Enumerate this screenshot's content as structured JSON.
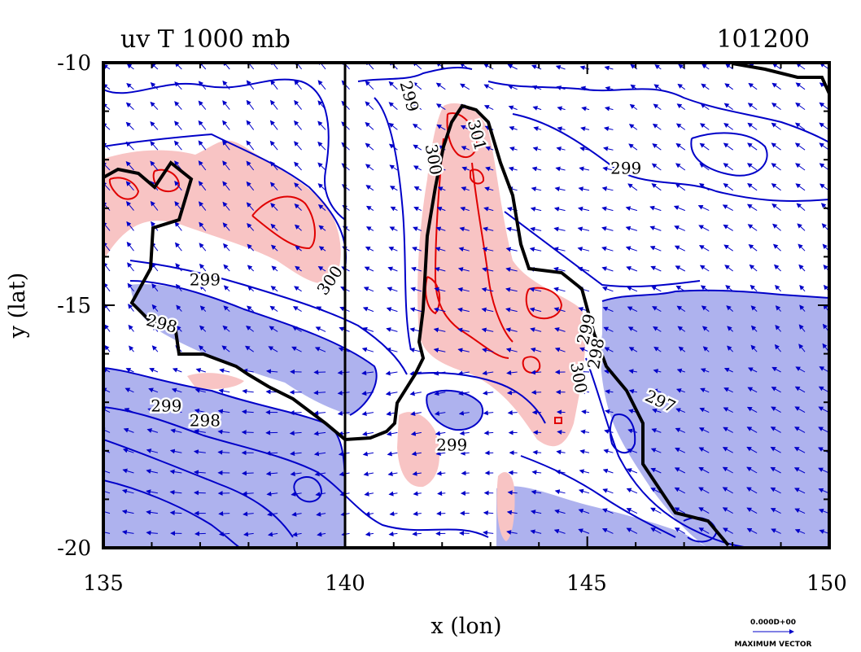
{
  "chart_data": {
    "type": "contour",
    "title": "uv T 1000 mb",
    "title_right": "101200",
    "xlabel": "x (lon)",
    "ylabel": "y (lat)",
    "xlim": [
      135,
      150
    ],
    "ylim": [
      -20,
      -10
    ],
    "xticks": [
      135,
      140,
      145,
      150
    ],
    "yticks": [
      -10,
      -15,
      -20
    ],
    "grid": false,
    "warm_fill_color": "#f8c4c4",
    "cool_fill_color": "#aeb2ee",
    "warm_line_color": "#e00000",
    "cool_line_color": "#0000c8",
    "coast_color": "#000000",
    "contour_labels": [
      {
        "text": "299",
        "x": 141.3,
        "y": -10.7,
        "rotate": 75
      },
      {
        "text": "301",
        "x": 142.7,
        "y": -11.5,
        "rotate": 75
      },
      {
        "text": "300",
        "x": 141.8,
        "y": -12.0,
        "rotate": 80
      },
      {
        "text": "299",
        "x": 145.8,
        "y": -12.2,
        "rotate": 0
      },
      {
        "text": "299",
        "x": 137.1,
        "y": -14.5,
        "rotate": 0
      },
      {
        "text": "300",
        "x": 139.7,
        "y": -14.5,
        "rotate": -55
      },
      {
        "text": "298",
        "x": 136.2,
        "y": -15.4,
        "rotate": 15
      },
      {
        "text": "299",
        "x": 145.0,
        "y": -15.5,
        "rotate": -75
      },
      {
        "text": "298",
        "x": 145.2,
        "y": -16.0,
        "rotate": -80
      },
      {
        "text": "300",
        "x": 144.8,
        "y": -16.5,
        "rotate": 80
      },
      {
        "text": "299",
        "x": 136.3,
        "y": -17.1,
        "rotate": 0
      },
      {
        "text": "297",
        "x": 146.5,
        "y": -17.0,
        "rotate": 25
      },
      {
        "text": "298",
        "x": 137.1,
        "y": -17.4,
        "rotate": 0
      },
      {
        "text": "299",
        "x": 142.2,
        "y": -17.9,
        "rotate": 0
      }
    ],
    "vector_legend": {
      "value": "0.000D+00",
      "caption": "MAXIMUM VECTOR"
    }
  }
}
